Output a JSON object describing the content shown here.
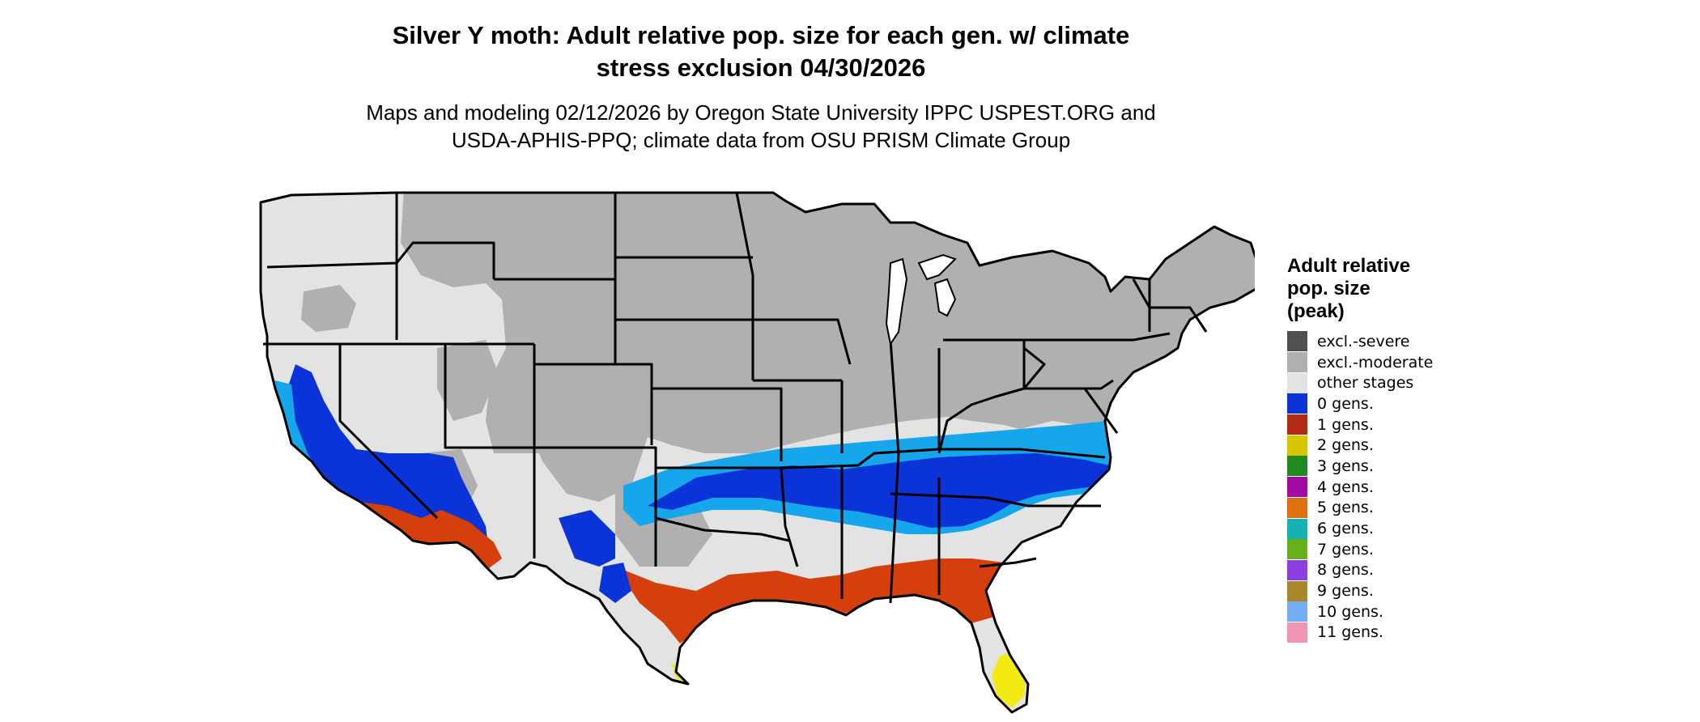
{
  "title_line1": "Silver Y moth: Adult relative pop. size for each gen. w/ climate",
  "title_line2": "stress exclusion 04/30/2026",
  "subtitle_line1": "Maps and modeling 02/12/2026 by Oregon State University IPPC USPEST.ORG and",
  "subtitle_line2": "USDA-APHIS-PPQ; climate data from OSU PRISM Climate Group",
  "legend": {
    "title_line1": "Adult relative",
    "title_line2": "pop. size",
    "title_line3": "(peak)",
    "items": [
      {
        "label": "excl.-severe",
        "color": "#505050"
      },
      {
        "label": "excl.-moderate",
        "color": "#b0b0b0"
      },
      {
        "label": "other stages",
        "color": "#e3e3e3"
      },
      {
        "label": "0 gens.",
        "color": "#0a34d8"
      },
      {
        "label": "1 gens.",
        "color": "#b02a14"
      },
      {
        "label": "2 gens.",
        "color": "#d8c600"
      },
      {
        "label": "3 gens.",
        "color": "#1f8a22"
      },
      {
        "label": "4 gens.",
        "color": "#a10aa3"
      },
      {
        "label": "5 gens.",
        "color": "#de7010"
      },
      {
        "label": "6 gens.",
        "color": "#14b3b0"
      },
      {
        "label": "7 gens.",
        "color": "#66b01a"
      },
      {
        "label": "8 gens.",
        "color": "#8d3ee0"
      },
      {
        "label": "9 gens.",
        "color": "#a9882a"
      },
      {
        "label": "10 gens.",
        "color": "#72adf2"
      },
      {
        "label": "11 gens.",
        "color": "#f294b3"
      }
    ]
  },
  "map_colors": {
    "excl_moderate": "#b0b0b0",
    "other_stages": "#e3e3e3",
    "gen0_dark": "#0a34d8",
    "gen0_light": "#15a6ec",
    "gen1": "#d43f0c",
    "gen2": "#f2ea10",
    "border": "#000000"
  }
}
